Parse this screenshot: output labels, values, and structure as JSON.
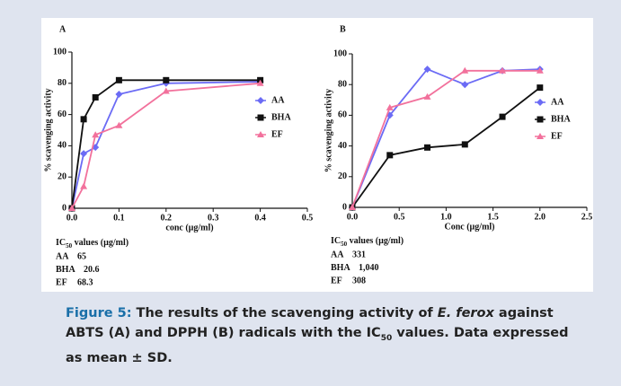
{
  "chart_data": [
    {
      "type": "line",
      "panel": "A",
      "ylabel": "% scavenging activity",
      "xlabel": "conc (µg/ml)",
      "x": [
        0,
        0.025,
        0.05,
        0.1,
        0.2,
        0.4
      ],
      "xlim": [
        0,
        0.5
      ],
      "xticks": [
        {
          "value": 0,
          "label": "0.0"
        },
        0.1,
        0.2,
        0.3,
        0.4,
        0.5
      ],
      "ylim": [
        0,
        100
      ],
      "yticks": [
        0,
        20,
        40,
        60,
        80,
        100
      ],
      "legend": "right",
      "series": [
        {
          "name": "AA",
          "color": "#6b6bf5",
          "marker": "diamond",
          "values": [
            0,
            35,
            39,
            73,
            80,
            81
          ]
        },
        {
          "name": "BHA",
          "color": "#111111",
          "marker": "square",
          "values": [
            0,
            57,
            71,
            82,
            82,
            82
          ]
        },
        {
          "name": "EF",
          "color": "#f2719c",
          "marker": "triangle",
          "values": [
            0,
            14,
            47,
            53,
            75,
            80
          ]
        }
      ],
      "ic50": {
        "head": "IC",
        "sub": "50",
        "tail": " values (µg/ml)",
        "rows": [
          [
            "AA",
            "65"
          ],
          [
            "BHA",
            "20.6"
          ],
          [
            "EF",
            "68.3"
          ]
        ]
      }
    },
    {
      "type": "line",
      "panel": "B",
      "ylabel": "% scavenging activity",
      "xlabel": "Conc (µg/ml)",
      "x": [
        0,
        0.4,
        0.8,
        1.2,
        1.6,
        2.0
      ],
      "xlim": [
        0,
        2.5
      ],
      "xticks": [
        {
          "value": 0,
          "label": "0.0"
        },
        0.5,
        {
          "value": 1,
          "label": "1.0"
        },
        1.5,
        {
          "value": 2,
          "label": "2.0"
        },
        2.5
      ],
      "ylim": [
        0,
        100
      ],
      "yticks": [
        0,
        20,
        40,
        60,
        80,
        100
      ],
      "legend": "right",
      "series": [
        {
          "name": "AA",
          "color": "#6b6bf5",
          "marker": "diamond",
          "values": [
            0,
            60,
            90,
            80,
            89,
            90
          ]
        },
        {
          "name": "BHA",
          "color": "#111111",
          "marker": "square",
          "values": [
            0,
            34,
            39,
            41,
            59,
            78
          ]
        },
        {
          "name": "EF",
          "color": "#f2719c",
          "marker": "triangle",
          "values": [
            0,
            65,
            72,
            89,
            89,
            89
          ]
        }
      ],
      "ic50": {
        "head": "IC",
        "sub": "50",
        "tail": " values (µg/ml)",
        "rows": [
          [
            "AA",
            "331"
          ],
          [
            "BHA",
            "1,040"
          ],
          [
            "EF",
            "308"
          ]
        ]
      }
    }
  ],
  "caption": {
    "label": "Figure 5:",
    "text1": " The results of the scavenging activity of ",
    "italic": "E. ferox",
    "text2": " against ABTS (A) and DPPH (B) radicals with the IC",
    "sub": "50",
    "text3": " values. Data expressed as mean ± SD."
  }
}
